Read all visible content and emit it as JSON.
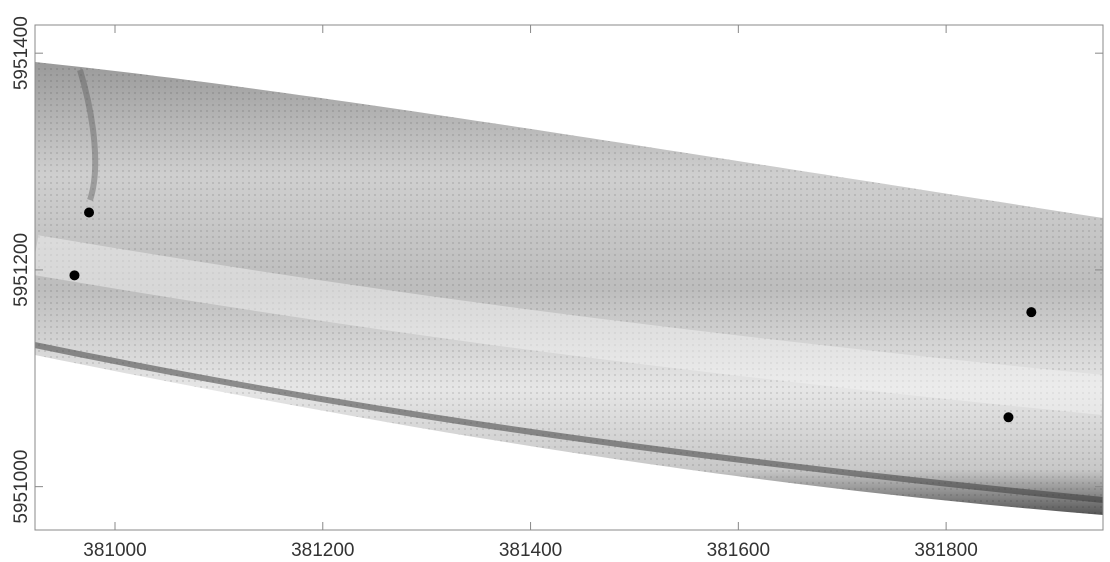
{
  "chart_data": {
    "type": "scatter",
    "x": [
      380961,
      380975,
      381882,
      381860
    ],
    "y": [
      5951195,
      5951253,
      5951161,
      5951064
    ],
    "color": "#000000",
    "xlim": [
      380923,
      381951
    ],
    "xticks": [
      381000,
      381200,
      381400,
      381600,
      381800
    ],
    "ylim": [
      5950960,
      5951426
    ],
    "yticks": [
      5951000,
      5951200,
      5951400
    ]
  }
}
